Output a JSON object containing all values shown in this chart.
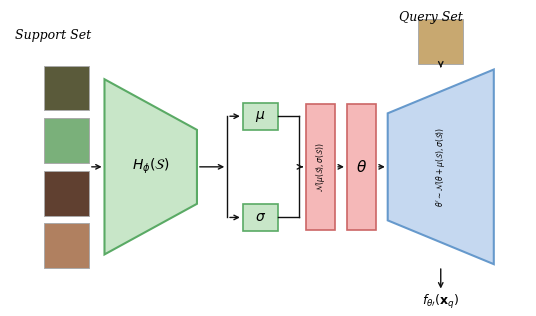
{
  "bg_color": "#ffffff",
  "support_set_label": "Support Set",
  "query_set_label": "Query Set",
  "green_fill": "#c8e6c8",
  "green_edge": "#5aaa65",
  "red_fill": "#f5b8b8",
  "red_edge": "#cc6666",
  "blue_fill": "#c5d8f0",
  "blue_edge": "#6699cc",
  "arrow_color": "#111111"
}
